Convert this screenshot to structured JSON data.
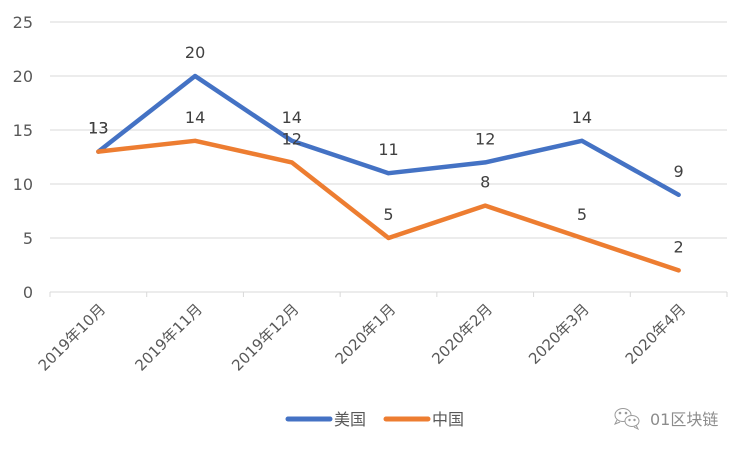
{
  "chart_data": {
    "type": "line",
    "title": "",
    "xlabel": "",
    "ylabel": "",
    "categories": [
      "2019年10月",
      "2019年11月",
      "2019年12月",
      "2020年1月",
      "2020年2月",
      "2020年3月",
      "2020年4月"
    ],
    "series": [
      {
        "name": "美国",
        "color": "#4472C4",
        "values": [
          13,
          20,
          14,
          11,
          12,
          14,
          9
        ]
      },
      {
        "name": "中国",
        "color": "#ED7D31",
        "values": [
          13,
          14,
          12,
          5,
          8,
          5,
          2
        ]
      }
    ],
    "ylim": [
      0,
      25
    ],
    "yticks": [
      0,
      5,
      10,
      15,
      20,
      25
    ],
    "grid": true,
    "legend_position": "bottom",
    "data_labels": true
  },
  "watermark": {
    "icon": "wechat-icon",
    "text": "01区块链"
  }
}
